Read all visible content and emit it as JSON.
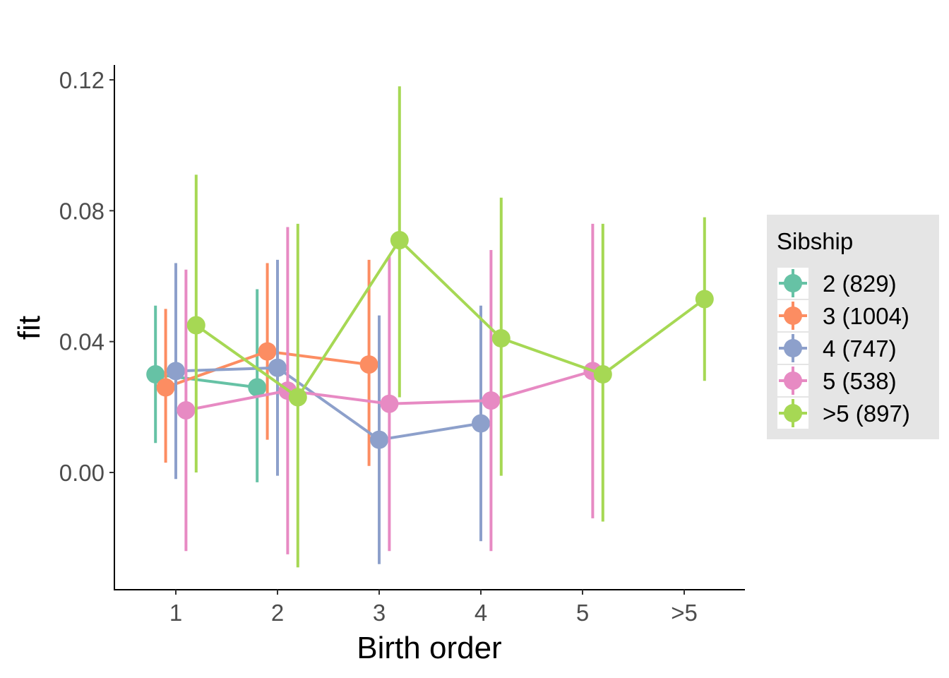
{
  "chart_data": {
    "type": "line",
    "xlabel": "Birth order",
    "ylabel": "fit",
    "categories": [
      "1",
      "2",
      "3",
      "4",
      "5",
      ">5"
    ],
    "yticks": [
      "0.00",
      "0.04",
      "0.08",
      "0.12"
    ],
    "ylim": [
      -0.036,
      0.126
    ],
    "grid": false,
    "legend": {
      "title": "Sibship",
      "position": "right"
    },
    "series": [
      {
        "name": "2 (829)",
        "color": "#66c2a5",
        "offset": -0.2,
        "points": [
          {
            "x": 1,
            "y": 0.03,
            "lo": 0.009,
            "hi": 0.051
          },
          {
            "x": 2,
            "y": 0.026,
            "lo": -0.003,
            "hi": 0.056
          }
        ]
      },
      {
        "name": "3 (1004)",
        "color": "#fc8d62",
        "offset": -0.1,
        "points": [
          {
            "x": 1,
            "y": 0.026,
            "lo": 0.003,
            "hi": 0.05
          },
          {
            "x": 2,
            "y": 0.037,
            "lo": 0.01,
            "hi": 0.064
          },
          {
            "x": 3,
            "y": 0.033,
            "lo": 0.002,
            "hi": 0.065
          }
        ]
      },
      {
        "name": "4 (747)",
        "color": "#8da0cb",
        "offset": 0.0,
        "points": [
          {
            "x": 1,
            "y": 0.031,
            "lo": -0.002,
            "hi": 0.064
          },
          {
            "x": 2,
            "y": 0.032,
            "lo": -0.001,
            "hi": 0.065
          },
          {
            "x": 3,
            "y": 0.01,
            "lo": -0.028,
            "hi": 0.048
          },
          {
            "x": 4,
            "y": 0.015,
            "lo": -0.021,
            "hi": 0.051
          }
        ]
      },
      {
        "name": "5 (538)",
        "color": "#e78ac3",
        "offset": 0.1,
        "points": [
          {
            "x": 1,
            "y": 0.019,
            "lo": -0.024,
            "hi": 0.062
          },
          {
            "x": 2,
            "y": 0.025,
            "lo": -0.025,
            "hi": 0.075
          },
          {
            "x": 3,
            "y": 0.021,
            "lo": -0.024,
            "hi": 0.066
          },
          {
            "x": 4,
            "y": 0.022,
            "lo": -0.024,
            "hi": 0.068
          },
          {
            "x": 5,
            "y": 0.031,
            "lo": -0.014,
            "hi": 0.076
          }
        ]
      },
      {
        "name": ">5 (897)",
        "color": "#a6d854",
        "offset": 0.2,
        "points": [
          {
            "x": 1,
            "y": 0.045,
            "lo": 0.0,
            "hi": 0.091
          },
          {
            "x": 2,
            "y": 0.023,
            "lo": -0.029,
            "hi": 0.076
          },
          {
            "x": 3,
            "y": 0.071,
            "lo": 0.023,
            "hi": 0.118
          },
          {
            "x": 4,
            "y": 0.041,
            "lo": -0.001,
            "hi": 0.084
          },
          {
            "x": 5,
            "y": 0.03,
            "lo": -0.015,
            "hi": 0.076
          },
          {
            "x": 6,
            "y": 0.053,
            "lo": 0.028,
            "hi": 0.078
          }
        ]
      }
    ]
  }
}
